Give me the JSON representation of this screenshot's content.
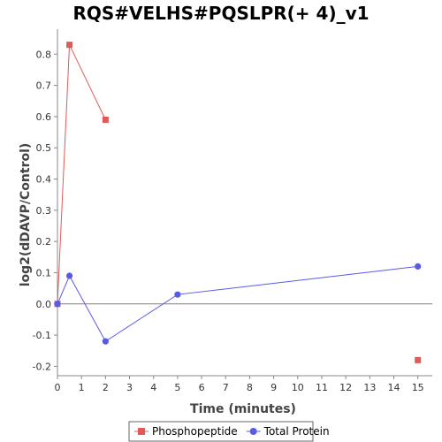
{
  "chart_data": {
    "type": "line",
    "title": "RQS#VELHS#PQSLPR(+ 4)_v1",
    "xlabel": "Time (minutes)",
    "ylabel": "log2(dDAVP/Control)",
    "xlim": [
      0,
      15.6
    ],
    "ylim": [
      -0.23,
      0.88
    ],
    "x_ticks": [
      0,
      1,
      2,
      3,
      4,
      5,
      6,
      7,
      8,
      9,
      10,
      11,
      12,
      13,
      14,
      15
    ],
    "y_ticks": [
      -0.2,
      -0.1,
      0.0,
      0.1,
      0.2,
      0.3,
      0.4,
      0.5,
      0.6,
      0.7,
      0.8
    ],
    "zero_line": true,
    "grid": false,
    "legend_position": "bottom",
    "series": [
      {
        "name": "Phosphopeptide",
        "color": "#e05a5a",
        "marker": "square",
        "points": [
          {
            "x": 0,
            "y": 0.0
          },
          {
            "x": 0.5,
            "y": 0.83
          },
          {
            "x": 2,
            "y": 0.59
          },
          {
            "x": 15,
            "y": -0.18
          }
        ],
        "connected_count": 3
      },
      {
        "name": "Total Protein",
        "color": "#5a5ae6",
        "marker": "circle",
        "points": [
          {
            "x": 0,
            "y": 0.0
          },
          {
            "x": 0.5,
            "y": 0.09
          },
          {
            "x": 2,
            "y": -0.12
          },
          {
            "x": 5,
            "y": 0.03
          },
          {
            "x": 15,
            "y": 0.12
          }
        ],
        "connected_count": 5
      }
    ]
  }
}
